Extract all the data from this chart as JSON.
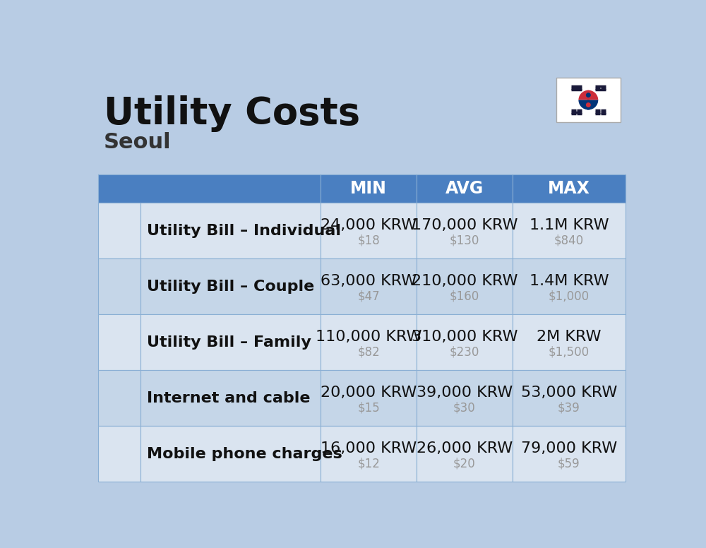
{
  "title": "Utility Costs",
  "subtitle": "Seoul",
  "background_color": "#b8cce4",
  "header_color": "#4a7fc1",
  "header_text_color": "#ffffff",
  "row_color_odd": "#dae4f0",
  "row_color_even": "#c5d6e8",
  "row_border_color": "#8aafd4",
  "col_headers": [
    "MIN",
    "AVG",
    "MAX"
  ],
  "rows": [
    {
      "label": "Utility Bill – Individual",
      "min_krw": "24,000 KRW",
      "min_usd": "$18",
      "avg_krw": "170,000 KRW",
      "avg_usd": "$130",
      "max_krw": "1.1M KRW",
      "max_usd": "$840"
    },
    {
      "label": "Utility Bill – Couple",
      "min_krw": "63,000 KRW",
      "min_usd": "$47",
      "avg_krw": "210,000 KRW",
      "avg_usd": "$160",
      "max_krw": "1.4M KRW",
      "max_usd": "$1,000"
    },
    {
      "label": "Utility Bill – Family",
      "min_krw": "110,000 KRW",
      "min_usd": "$82",
      "avg_krw": "310,000 KRW",
      "avg_usd": "$230",
      "max_krw": "2M KRW",
      "max_usd": "$1,500"
    },
    {
      "label": "Internet and cable",
      "min_krw": "20,000 KRW",
      "min_usd": "$15",
      "avg_krw": "39,000 KRW",
      "avg_usd": "$30",
      "max_krw": "53,000 KRW",
      "max_usd": "$39"
    },
    {
      "label": "Mobile phone charges",
      "min_krw": "16,000 KRW",
      "min_usd": "$12",
      "avg_krw": "26,000 KRW",
      "avg_usd": "$20",
      "max_krw": "79,000 KRW",
      "max_usd": "$59"
    }
  ],
  "title_fontsize": 38,
  "subtitle_fontsize": 22,
  "header_fontsize": 17,
  "label_fontsize": 16,
  "value_fontsize": 16,
  "usd_fontsize": 12,
  "usd_color": "#999999",
  "label_color": "#111111",
  "value_color": "#111111",
  "title_color": "#111111",
  "subtitle_color": "#333333"
}
